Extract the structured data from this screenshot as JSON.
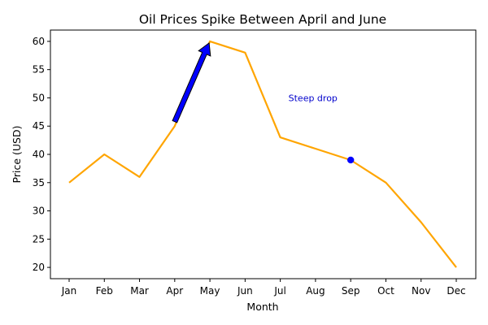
{
  "chart_data": {
    "type": "line",
    "title": "Oil Prices Spike Between April and June",
    "xlabel": "Month",
    "ylabel": "Price (USD)",
    "categories": [
      "Jan",
      "Feb",
      "Mar",
      "Apr",
      "May",
      "Jun",
      "Jul",
      "Aug",
      "Sep",
      "Oct",
      "Nov",
      "Dec"
    ],
    "series": [
      {
        "values": [
          35,
          40,
          36,
          45,
          60,
          58,
          43,
          41,
          39,
          35,
          28,
          20
        ],
        "color": "#ffa500"
      }
    ],
    "ylim": [
      18,
      62
    ],
    "yticks": [
      20,
      25,
      30,
      35,
      40,
      45,
      50,
      55,
      60
    ],
    "grid": false,
    "annotations": [
      {
        "type": "arrow",
        "from": [
          "Apr",
          45.8
        ],
        "to": [
          "May",
          60
        ],
        "color": "#0000ff"
      },
      {
        "type": "text",
        "text": "Steep drop",
        "at": [
          "Jul",
          50
        ],
        "color": "#0000cc"
      },
      {
        "type": "marker",
        "at": [
          "Sep",
          39
        ],
        "color": "#0000ff"
      }
    ]
  }
}
